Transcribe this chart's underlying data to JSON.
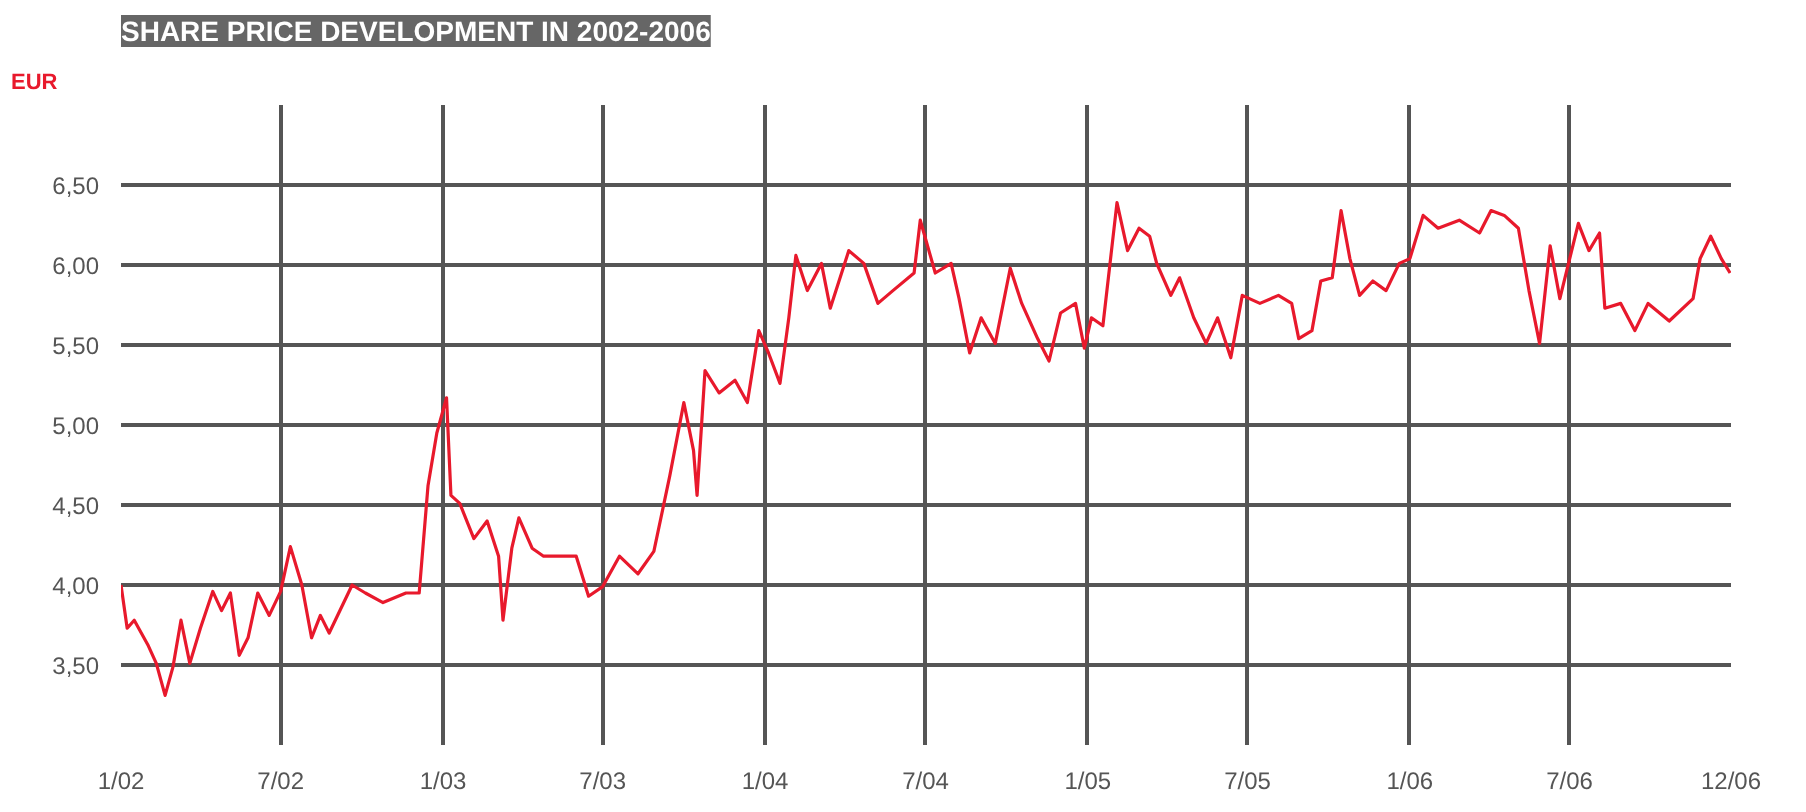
{
  "chart_data": {
    "type": "line",
    "title": "SHARE PRICE DEVELOPMENT IN 2002-2006",
    "ylabel": "EUR",
    "x": [
      "2002-01-01",
      "2002-01-08",
      "2002-01-16",
      "2002-02-01",
      "2002-02-10",
      "2002-02-20",
      "2002-03-01",
      "2002-03-10",
      "2002-03-20",
      "2002-04-01",
      "2002-04-15",
      "2002-04-25",
      "2002-05-05",
      "2002-05-15",
      "2002-05-25",
      "2002-06-05",
      "2002-06-18",
      "2002-07-01",
      "2002-07-12",
      "2002-07-25",
      "2002-08-05",
      "2002-08-15",
      "2002-08-25",
      "2002-09-20",
      "2002-10-05",
      "2002-10-25",
      "2002-11-20",
      "2002-12-05",
      "2002-12-15",
      "2002-12-25",
      "2003-01-05",
      "2003-01-10",
      "2003-01-20",
      "2003-02-05",
      "2003-02-20",
      "2003-03-05",
      "2003-03-10",
      "2003-03-20",
      "2003-03-28",
      "2003-04-12",
      "2003-04-25",
      "2003-06-01",
      "2003-06-15",
      "2003-07-01",
      "2003-07-20",
      "2003-08-10",
      "2003-08-28",
      "2003-09-15",
      "2003-10-01",
      "2003-10-12",
      "2003-10-16",
      "2003-10-25",
      "2003-11-10",
      "2003-11-28",
      "2003-12-12",
      "2003-12-25",
      "2004-01-05",
      "2004-01-18",
      "2004-01-28",
      "2004-02-05",
      "2004-02-18",
      "2004-03-05",
      "2004-03-15",
      "2004-04-05",
      "2004-04-22",
      "2004-05-08",
      "2004-05-25",
      "2004-06-18",
      "2004-06-25",
      "2004-07-12",
      "2004-07-30",
      "2004-08-08",
      "2004-08-20",
      "2004-09-02",
      "2004-09-18",
      "2004-10-05",
      "2004-10-18",
      "2004-11-05",
      "2004-11-18",
      "2004-12-01",
      "2004-12-18",
      "2004-12-28",
      "2005-01-05",
      "2005-01-18",
      "2005-02-03",
      "2005-02-15",
      "2005-02-28",
      "2005-03-12",
      "2005-03-20",
      "2005-04-05",
      "2005-04-15",
      "2005-05-01",
      "2005-05-15",
      "2005-05-28",
      "2005-06-12",
      "2005-06-25",
      "2005-07-15",
      "2005-08-05",
      "2005-08-20",
      "2005-08-28",
      "2005-09-12",
      "2005-09-22",
      "2005-10-05",
      "2005-10-15",
      "2005-10-25",
      "2005-11-05",
      "2005-11-20",
      "2005-12-05",
      "2005-12-20",
      "2006-01-01",
      "2006-01-16",
      "2006-02-02",
      "2006-02-26",
      "2006-03-21",
      "2006-04-03",
      "2006-04-18",
      "2006-05-04",
      "2006-05-16",
      "2006-05-28",
      "2006-06-09",
      "2006-06-20",
      "2006-07-11",
      "2006-07-23",
      "2006-08-04",
      "2006-08-10",
      "2006-08-28",
      "2006-09-13",
      "2006-09-28",
      "2006-10-22",
      "2006-11-18",
      "2006-11-26",
      "2006-12-08",
      "2006-12-20",
      "2006-12-30"
    ],
    "series": [
      {
        "color": "#e8192c",
        "values": [
          4.0,
          3.73,
          3.78,
          3.62,
          3.51,
          3.31,
          3.49,
          3.78,
          3.51,
          3.73,
          3.96,
          3.84,
          3.95,
          3.56,
          3.67,
          3.95,
          3.81,
          3.96,
          4.24,
          4.0,
          3.67,
          3.81,
          3.7,
          4.0,
          3.95,
          3.89,
          3.95,
          3.95,
          4.62,
          4.95,
          5.17,
          4.56,
          4.51,
          4.29,
          4.4,
          4.18,
          3.78,
          4.23,
          4.42,
          4.23,
          4.18,
          4.18,
          3.93,
          3.99,
          4.18,
          4.07,
          4.21,
          4.68,
          5.14,
          4.84,
          4.56,
          5.34,
          5.2,
          5.28,
          5.14,
          5.59,
          5.45,
          5.26,
          5.67,
          6.06,
          5.84,
          6.01,
          5.73,
          6.09,
          6.01,
          5.76,
          5.84,
          5.95,
          6.28,
          5.95,
          6.01,
          5.79,
          5.45,
          5.67,
          5.51,
          5.98,
          5.76,
          5.54,
          5.4,
          5.7,
          5.76,
          5.48,
          5.67,
          5.62,
          6.39,
          6.09,
          6.23,
          6.18,
          6.01,
          5.81,
          5.92,
          5.67,
          5.51,
          5.67,
          5.42,
          5.81,
          5.76,
          5.81,
          5.76,
          5.54,
          5.59,
          5.9,
          5.92,
          6.34,
          6.04,
          5.81,
          5.9,
          5.84,
          6.01,
          6.04,
          6.31,
          6.23,
          6.28,
          6.2,
          6.34,
          6.31,
          6.23,
          5.84,
          5.51,
          6.12,
          5.79,
          6.26,
          6.09,
          6.2,
          5.73,
          5.76,
          5.59,
          5.76,
          5.65,
          5.79,
          6.04,
          6.18,
          6.04,
          5.95
        ]
      }
    ],
    "xlim": [
      "2002-01-01",
      "2006-12-31"
    ],
    "ylim": [
      3.0,
      7.0
    ],
    "xticks": [
      {
        "value": "2002-01-01",
        "label": "1/02"
      },
      {
        "value": "2002-07-01",
        "label": "7/02"
      },
      {
        "value": "2003-01-01",
        "label": "1/03"
      },
      {
        "value": "2003-07-01",
        "label": "7/03"
      },
      {
        "value": "2004-01-01",
        "label": "1/04"
      },
      {
        "value": "2004-07-01",
        "label": "7/04"
      },
      {
        "value": "2005-01-01",
        "label": "1/05"
      },
      {
        "value": "2005-07-01",
        "label": "7/05"
      },
      {
        "value": "2006-01-01",
        "label": "1/06"
      },
      {
        "value": "2006-07-01",
        "label": "7/06"
      },
      {
        "value": "2006-12-31",
        "label": "12/06"
      }
    ],
    "yticks": [
      {
        "value": 3.5,
        "label": "3,50"
      },
      {
        "value": 4.0,
        "label": "4,00"
      },
      {
        "value": 4.5,
        "label": "4,50"
      },
      {
        "value": 5.0,
        "label": "5,00"
      },
      {
        "value": 5.5,
        "label": "5,50"
      },
      {
        "value": 6.0,
        "label": "6,00"
      },
      {
        "value": 6.5,
        "label": "6,50"
      }
    ],
    "grid": true,
    "marker": "none",
    "line_style": "solid"
  }
}
